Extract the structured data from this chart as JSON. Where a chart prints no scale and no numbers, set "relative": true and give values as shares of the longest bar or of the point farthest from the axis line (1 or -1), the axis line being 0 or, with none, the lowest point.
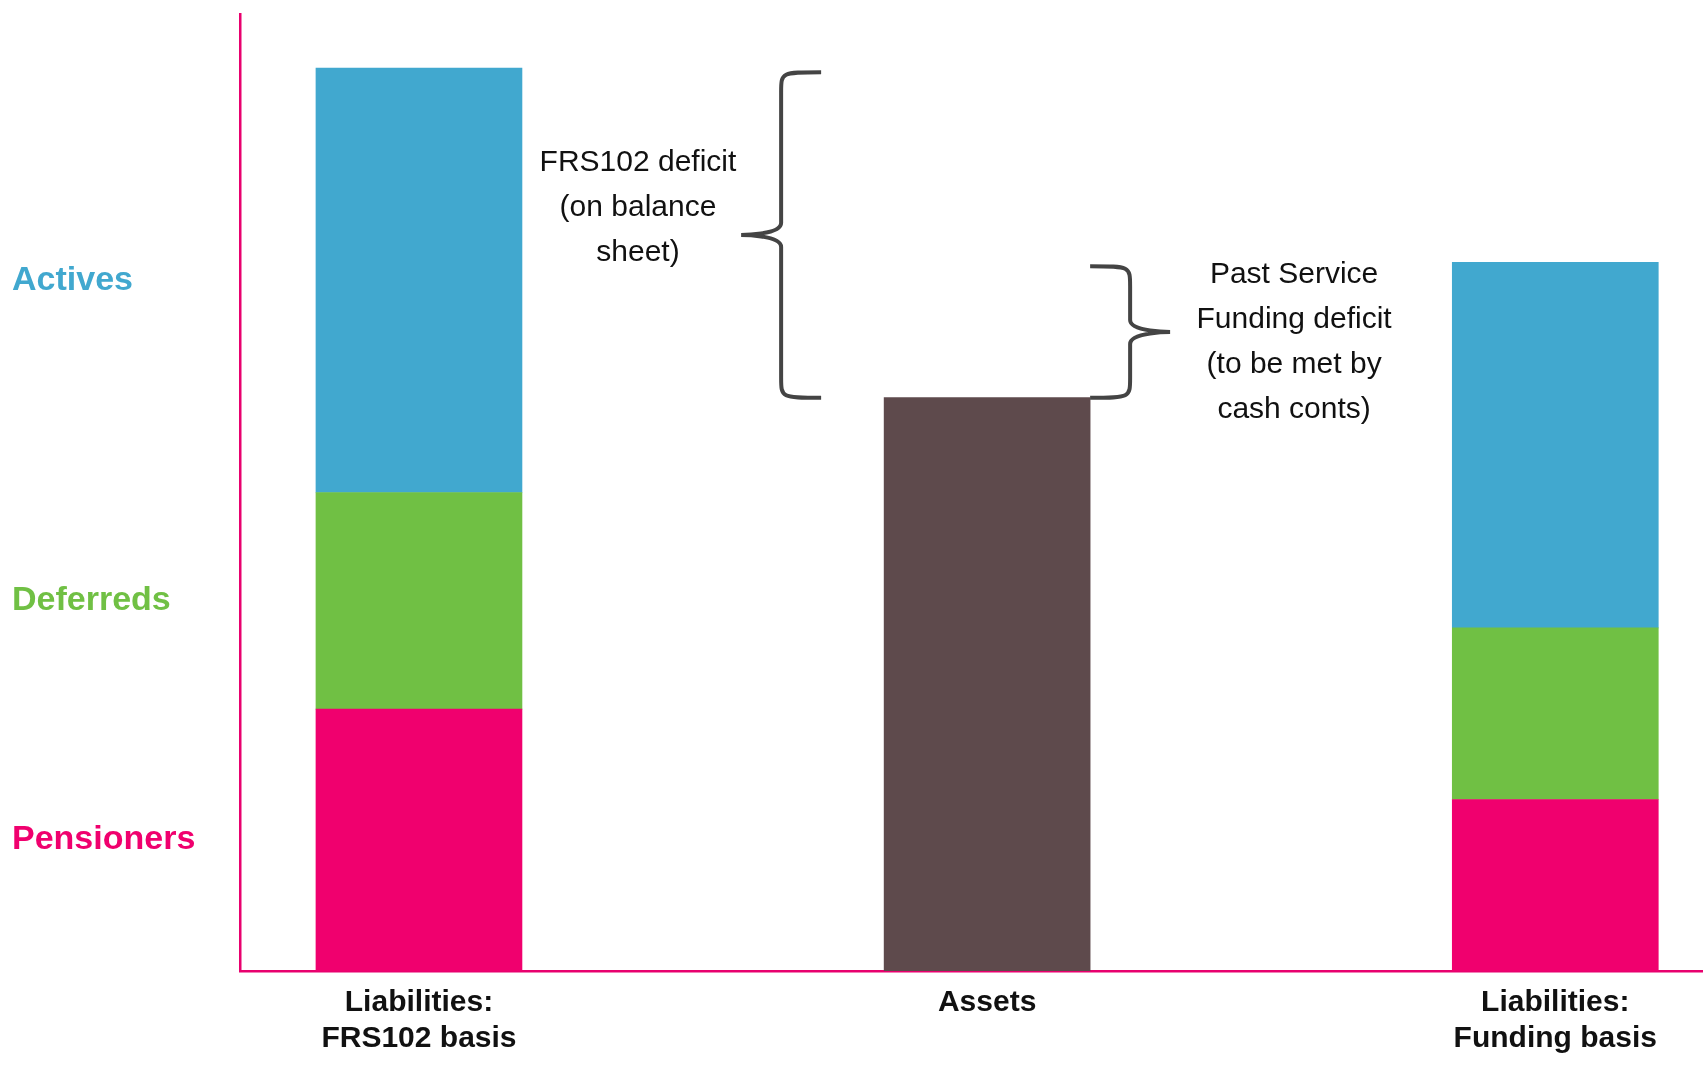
{
  "chart_data": {
    "type": "bar",
    "relative": true,
    "stacked": true,
    "categories": [
      "Liabilities: FRS102 basis",
      "Assets",
      "Liabilities: Funding basis"
    ],
    "series": [
      {
        "name": "Pensioners",
        "color": "#f0006e",
        "values": [
          0.29,
          null,
          0.19
        ]
      },
      {
        "name": "Deferreds",
        "color": "#70c044",
        "values": [
          0.24,
          null,
          0.19
        ]
      },
      {
        "name": "Actives",
        "color": "#41a8cf",
        "values": [
          0.47,
          null,
          0.405
        ]
      },
      {
        "color": "#5e4a4c",
        "values": [
          null,
          0.635,
          null
        ]
      }
    ],
    "annotations": [
      "FRS102 deficit (on balance sheet)",
      "Past Service Funding deficit (to be met by cash conts)"
    ],
    "grid": false,
    "legend": false
  }
}
